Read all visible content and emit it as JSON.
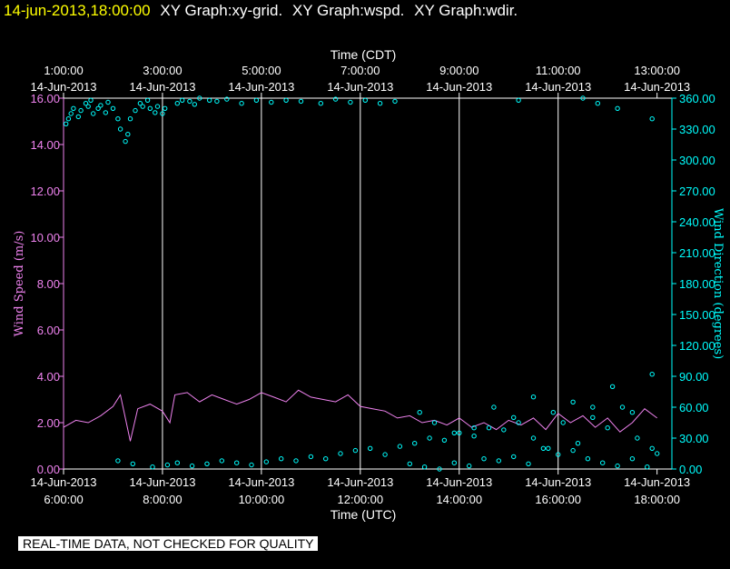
{
  "header": {
    "timestamp": "14-jun-2013,18:00:00",
    "graphs": [
      "XY Graph:xy-grid.",
      "XY Graph:wspd.",
      "XY Graph:wdir."
    ]
  },
  "notice": "REAL-TIME DATA, NOT CHECKED FOR QUALITY",
  "colors": {
    "background": "#000000",
    "speed": "#ee82ee",
    "direction": "#00ffff",
    "grid": "#ffffff",
    "title": "#ffff00"
  },
  "chart_data": {
    "type": "line",
    "top_axis": {
      "label": "Time (CDT)",
      "ticks": [
        {
          "time": "1:00:00",
          "date": "14-Jun-2013"
        },
        {
          "time": "3:00:00",
          "date": "14-Jun-2013"
        },
        {
          "time": "5:00:00",
          "date": "14-Jun-2013"
        },
        {
          "time": "7:00:00",
          "date": "14-Jun-2013"
        },
        {
          "time": "9:00:00",
          "date": "14-Jun-2013"
        },
        {
          "time": "11:00:00",
          "date": "14-Jun-2013"
        },
        {
          "time": "13:00:00",
          "date": "14-Jun-2013"
        }
      ]
    },
    "bottom_axis": {
      "label": "Time (UTC)",
      "ticks": [
        {
          "date": "14-Jun-2013",
          "time": "6:00:00"
        },
        {
          "date": "14-Jun-2013",
          "time": "8:00:00"
        },
        {
          "date": "14-Jun-2013",
          "time": "10:00:00"
        },
        {
          "date": "14-Jun-2013",
          "time": "12:00:00"
        },
        {
          "date": "14-Jun-2013",
          "time": "14:00:00"
        },
        {
          "date": "14-Jun-2013",
          "time": "16:00:00"
        },
        {
          "date": "14-Jun-2013",
          "time": "18:00:00"
        }
      ]
    },
    "xlim_utc_hours": [
      6,
      18.3
    ],
    "left_axis": {
      "label": "Wind Speed (m/s)",
      "ylim": [
        0,
        16
      ],
      "ticks": [
        "0.00",
        "2.00",
        "4.00",
        "6.00",
        "8.00",
        "10.00",
        "12.00",
        "14.00",
        "16.00"
      ]
    },
    "right_axis": {
      "label": "Wind Direction (degrees)",
      "ylim": [
        0,
        360
      ],
      "ticks": [
        "0.00",
        "30.00",
        "60.00",
        "90.00",
        "120.00",
        "150.00",
        "180.00",
        "210.00",
        "240.00",
        "270.00",
        "300.00",
        "330.00",
        "360.00"
      ]
    },
    "grid": "vertical",
    "series": [
      {
        "name": "wspd",
        "kind": "line",
        "x": [
          6.0,
          6.25,
          6.5,
          6.75,
          7.0,
          7.15,
          7.35,
          7.5,
          7.75,
          8.0,
          8.15,
          8.25,
          8.5,
          8.75,
          9.0,
          9.25,
          9.5,
          9.75,
          10.0,
          10.25,
          10.5,
          10.75,
          11.0,
          11.25,
          11.5,
          11.75,
          12.0,
          12.25,
          12.5,
          12.75,
          13.0,
          13.25,
          13.5,
          13.75,
          14.0,
          14.25,
          14.5,
          14.75,
          15.0,
          15.25,
          15.5,
          15.75,
          16.0,
          16.25,
          16.5,
          16.75,
          17.0,
          17.25,
          17.5,
          17.75,
          18.0
        ],
        "y": [
          1.8,
          2.1,
          2.0,
          2.3,
          2.7,
          3.2,
          1.2,
          2.6,
          2.8,
          2.5,
          2.0,
          3.2,
          3.3,
          2.9,
          3.2,
          3.0,
          2.8,
          3.0,
          3.3,
          3.1,
          2.9,
          3.4,
          3.1,
          3.0,
          2.9,
          3.2,
          2.7,
          2.6,
          2.5,
          2.2,
          2.3,
          2.0,
          2.1,
          1.9,
          2.2,
          1.8,
          2.0,
          1.7,
          2.1,
          1.9,
          2.2,
          1.7,
          2.4,
          2.0,
          2.3,
          1.8,
          2.2,
          1.6,
          2.0,
          2.6,
          2.2
        ]
      },
      {
        "name": "wdir",
        "kind": "scatter",
        "x": [
          6.05,
          6.1,
          6.15,
          6.2,
          6.3,
          6.35,
          6.45,
          6.5,
          6.55,
          6.6,
          6.7,
          6.75,
          6.85,
          6.9,
          7.0,
          7.1,
          7.15,
          7.25,
          7.3,
          7.35,
          7.45,
          7.55,
          7.6,
          7.7,
          7.75,
          7.85,
          7.9,
          8.0,
          8.05,
          8.3,
          8.4,
          8.55,
          8.65,
          8.75,
          8.95,
          9.1,
          9.3,
          9.6,
          9.9,
          10.2,
          10.5,
          10.8,
          11.2,
          11.5,
          11.8,
          12.1,
          12.4,
          12.7,
          13.0,
          13.3,
          13.6,
          13.9,
          14.2,
          14.5,
          14.8,
          15.1,
          15.4,
          15.7,
          16.0,
          16.3,
          16.6,
          16.9,
          17.2,
          17.5,
          17.8,
          18.0,
          7.1,
          7.4,
          7.8,
          8.1,
          8.3,
          8.6,
          8.9,
          9.2,
          9.5,
          9.8,
          10.1,
          10.4,
          10.7,
          11.0,
          11.3,
          11.6,
          11.9,
          12.2,
          12.5,
          12.8,
          13.1,
          13.4,
          13.7,
          14.0,
          14.3,
          14.6,
          14.9,
          15.2,
          15.5,
          15.8,
          16.1,
          16.4,
          16.7,
          17.0,
          17.3,
          17.6,
          17.9,
          13.2,
          13.5,
          13.9,
          14.3,
          14.7,
          15.1,
          15.5,
          15.9,
          16.3,
          16.7,
          17.1,
          17.5,
          17.9,
          16.5,
          17.2,
          15.2,
          16.8,
          17.9
        ],
        "y": [
          335,
          340,
          345,
          350,
          342,
          348,
          355,
          352,
          358,
          345,
          350,
          353,
          346,
          356,
          350,
          340,
          330,
          318,
          325,
          340,
          348,
          355,
          352,
          358,
          350,
          346,
          352,
          345,
          350,
          355,
          358,
          357,
          354,
          360,
          358,
          357,
          359,
          355,
          358,
          356,
          358,
          357,
          355,
          359,
          356,
          358,
          355,
          357,
          5,
          2,
          0,
          6,
          3,
          10,
          8,
          12,
          5,
          20,
          14,
          18,
          10,
          6,
          3,
          10,
          2,
          15,
          8,
          5,
          2,
          4,
          6,
          3,
          5,
          8,
          6,
          4,
          7,
          10,
          8,
          12,
          10,
          15,
          18,
          20,
          14,
          22,
          25,
          30,
          28,
          35,
          32,
          40,
          38,
          45,
          30,
          20,
          45,
          25,
          50,
          40,
          60,
          30,
          20,
          55,
          45,
          35,
          40,
          60,
          50,
          70,
          55,
          65,
          60,
          80,
          55,
          92,
          360,
          350,
          358,
          355,
          340
        ]
      }
    ]
  }
}
